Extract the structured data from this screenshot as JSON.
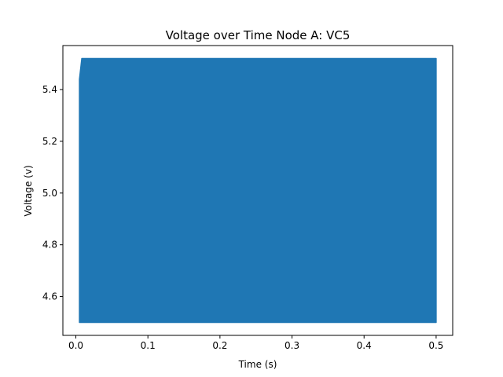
{
  "chart_data": {
    "type": "line",
    "title": "Voltage over Time Node A: VC5",
    "xlabel": "Time (s)",
    "ylabel": "Voltage (v)",
    "xlim": [
      -0.018,
      0.523
    ],
    "ylim": [
      4.45,
      5.57
    ],
    "xticks": [
      0.0,
      0.1,
      0.2,
      0.3,
      0.4,
      0.5
    ],
    "xtick_labels": [
      "0.0",
      "0.1",
      "0.2",
      "0.3",
      "0.4",
      "0.5"
    ],
    "yticks": [
      4.6,
      4.8,
      5.0,
      5.2,
      5.4
    ],
    "ytick_labels": [
      "4.6",
      "4.8",
      "5.0",
      "5.2",
      "5.4"
    ],
    "grid": false,
    "series": [
      {
        "name": "",
        "color": "#1f77b4",
        "description_values": {
          "x_start": 0.005,
          "x_end": 0.5,
          "y_min": 4.5,
          "y_max": 5.52,
          "initial_peak_x": 0.005,
          "initial_peak_y": 5.44,
          "final_x": 0.5,
          "final_y": 4.9
        }
      }
    ]
  }
}
